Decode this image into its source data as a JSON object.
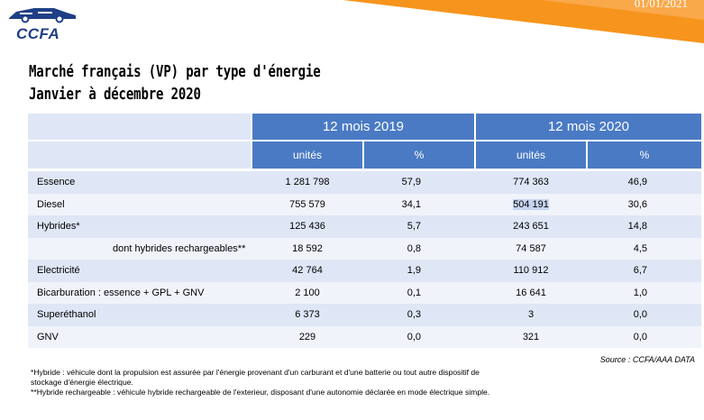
{
  "header": {
    "date": "01/01/2021",
    "logo_text": "CCFA",
    "accent_color": "#f7941d"
  },
  "title": {
    "line1": "Marché français (VP) par type d'énergie",
    "line2": "Janvier à décembre 2020"
  },
  "table": {
    "period_headers": [
      "12 mois 2019",
      "12 mois 2020"
    ],
    "subheaders": [
      "unités",
      "%",
      "unités",
      "%"
    ],
    "rows": [
      {
        "label": "Essence",
        "u2019": "1 281 798",
        "p2019": "57,9",
        "u2020": "774 363",
        "p2020": "46,9"
      },
      {
        "label": "Diesel",
        "u2019": "755 579",
        "p2019": "34,1",
        "u2020": "504 191",
        "p2020": "30,6"
      },
      {
        "label": "Hybrides*",
        "u2019": "125 436",
        "p2019": "5,7",
        "u2020": "243 651",
        "p2020": "14,8"
      },
      {
        "label": "dont hybrides rechargeables**",
        "u2019": "18 592",
        "p2019": "0,8",
        "u2020": "74 587",
        "p2020": "4,5"
      },
      {
        "label": "Electricité",
        "u2019": "42 764",
        "p2019": "1,9",
        "u2020": "110 912",
        "p2020": "6,7"
      },
      {
        "label": "Bicarburation : essence + GPL + GNV",
        "u2019": "2 100",
        "p2019": "0,1",
        "u2020": "16 641",
        "p2020": "1,0"
      },
      {
        "label": "Superéthanol",
        "u2019": "6 373",
        "p2019": "0,3",
        "u2020": "3",
        "p2020": "0,0"
      },
      {
        "label": "GNV",
        "u2019": "229",
        "p2019": "0,0",
        "u2020": "321",
        "p2020": "0,0"
      }
    ]
  },
  "source": "Source : CCFA/AAA DATA",
  "notes": {
    "hybride": "*Hybride : véhicule dont la propulsion est assurée par l'énergie provenant d'un carburant et d'une batterie ou tout autre dispositif de stockage d'énergie électrique.",
    "rechargeable": "**Hybride rechargeable : véhicule hybride rechargeable de l'exterieur, disposant d'une autonomie déclarée en mode électrique simple."
  }
}
